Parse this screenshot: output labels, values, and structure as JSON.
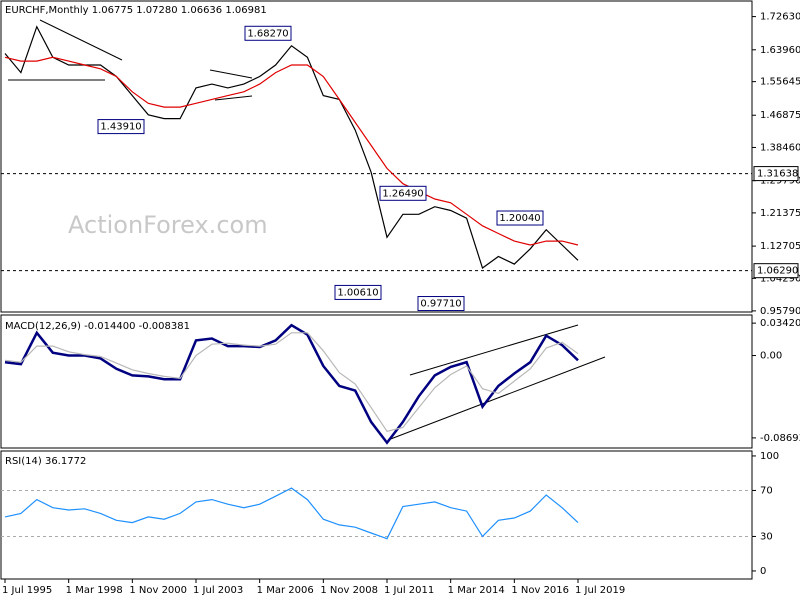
{
  "chart_data": [
    {
      "type": "line",
      "title": "EURCHF,Monthly  1.06775 1.07280 1.06636 1.06981",
      "watermark": "ActionForex.com",
      "ylim": [
        0.955,
        1.767
      ],
      "yticks": [
        {
          "value": 1.7263,
          "label": "1.72630"
        },
        {
          "value": 1.6396,
          "label": "1.63960"
        },
        1.55645,
        1.46875,
        {
          "value": 1.3846,
          "label": "1.38460"
        },
        {
          "value": 1.2979,
          "label": "1.29790"
        },
        1.21375,
        1.12705,
        {
          "value": 1.0429,
          "label": "1.04290"
        },
        {
          "value": 0.9579,
          "label": "0.95790"
        }
      ],
      "series": [
        {
          "color": "#000000",
          "values": [
            1.63,
            1.58,
            1.7,
            1.62,
            1.6,
            1.6,
            1.6,
            1.57,
            1.52,
            1.47,
            1.46,
            1.46,
            1.54,
            1.55,
            1.54,
            1.55,
            1.57,
            1.6,
            1.65,
            1.62,
            1.52,
            1.51,
            1.43,
            1.32,
            1.15,
            1.21,
            1.21,
            1.23,
            1.22,
            1.2,
            1.07,
            1.1,
            1.08,
            1.12,
            1.17,
            1.13,
            1.09
          ]
        },
        {
          "color": "#e00000",
          "values": [
            1.62,
            1.61,
            1.61,
            1.62,
            1.61,
            1.6,
            1.59,
            1.57,
            1.53,
            1.5,
            1.49,
            1.49,
            1.5,
            1.51,
            1.52,
            1.53,
            1.55,
            1.58,
            1.6,
            1.6,
            1.57,
            1.51,
            1.45,
            1.39,
            1.33,
            1.29,
            1.27,
            1.25,
            1.24,
            1.21,
            1.18,
            1.16,
            1.14,
            1.13,
            1.14,
            1.14,
            1.13
          ]
        }
      ],
      "annotations": [
        {
          "value": 1.6827,
          "label": "1.68270"
        },
        {
          "value": 1.4391,
          "label": "1.43910"
        },
        {
          "value": 1.2649,
          "label": "1.26490"
        },
        {
          "value": 1.0061,
          "label": "1.00610"
        },
        {
          "value": 0.9771,
          "label": "0.97710"
        },
        {
          "value": 1.2004,
          "label": "1.20040"
        }
      ],
      "levels": [
        1.31638,
        {
          "value": 1.0629,
          "label": "1.06290"
        }
      ]
    },
    {
      "type": "line",
      "title": "MACD(12,26,9) -0.014400 -0.008381",
      "ylim": [
        -0.0976,
        0.0428
      ],
      "yticks": [
        0.034203,
        {
          "value": 0,
          "label": "0.00"
        },
        -0.086933
      ],
      "series": [
        {
          "color": "#000080",
          "values": [
            -0.007,
            -0.009,
            0.024,
            0.003,
            0,
            0,
            -0.003,
            -0.014,
            -0.021,
            -0.022,
            -0.025,
            -0.025,
            0.016,
            0.018,
            0.01,
            0.01,
            0.009,
            0.016,
            0.032,
            0.022,
            -0.011,
            -0.032,
            -0.037,
            -0.07,
            -0.092,
            -0.07,
            -0.043,
            -0.021,
            -0.012,
            -0.007,
            -0.054,
            -0.032,
            -0.019,
            -0.007,
            0.021,
            0.011,
            -0.005
          ]
        },
        {
          "color": "#b8b8b8",
          "values": [
            -0.005,
            -0.007,
            0.01,
            0.01,
            0.004,
            0.001,
            -0.001,
            -0.008,
            -0.015,
            -0.019,
            -0.022,
            -0.024,
            0,
            0.012,
            0.013,
            0.011,
            0.01,
            0.012,
            0.024,
            0.024,
            0.005,
            -0.018,
            -0.03,
            -0.055,
            -0.08,
            -0.076,
            -0.055,
            -0.034,
            -0.02,
            -0.011,
            -0.035,
            -0.04,
            -0.027,
            -0.014,
            0.008,
            0.014,
            0.002
          ]
        }
      ]
    },
    {
      "type": "line",
      "title": "RSI(14) 36.1772",
      "ylim": [
        -7,
        104.3
      ],
      "yticks": [
        100,
        70,
        30,
        0
      ],
      "dashed_levels": [
        70,
        30
      ],
      "categories": [
        "1 Jul 1995",
        null,
        null,
        null,
        "1 Mar 1998",
        null,
        null,
        null,
        "1 Nov 2000",
        null,
        null,
        null,
        "1 Jul 2003",
        null,
        null,
        null,
        "1 Mar 2006",
        null,
        null,
        null,
        "1 Nov 2008",
        null,
        null,
        null,
        "1 Jul 2011",
        null,
        null,
        null,
        "1 Mar 2014",
        null,
        null,
        null,
        "1 Nov 2016",
        null,
        null,
        null,
        "1 Jul 2019"
      ],
      "series": [
        {
          "color": "#1e90ff",
          "values": [
            47,
            50,
            62,
            55,
            53,
            54,
            50,
            44,
            42,
            47,
            45,
            50,
            60,
            62,
            58,
            55,
            58,
            65,
            72,
            62,
            45,
            40,
            38,
            33,
            28,
            56,
            58,
            60,
            55,
            52,
            30,
            44,
            46,
            52,
            66,
            55,
            42
          ]
        }
      ]
    }
  ]
}
